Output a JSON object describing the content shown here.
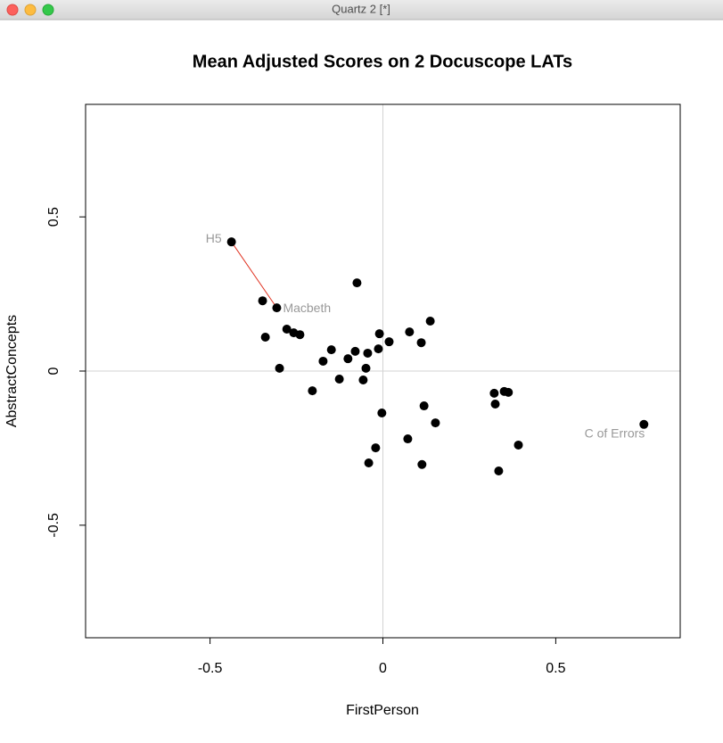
{
  "window_title": "Quartz 2 [*]",
  "chart_data": {
    "type": "scatter",
    "title": "Mean Adjusted Scores on 2 Docuscope LATs",
    "x_label": "FirstPerson",
    "y_label": "AbstractConcepts",
    "xlim": [
      -0.86,
      0.86
    ],
    "ylim": [
      -0.865,
      0.865
    ],
    "xticks": [
      -0.5,
      0.0,
      0.5
    ],
    "yticks": [
      -0.5,
      0.0,
      0.5
    ],
    "zero_lines": true,
    "color": "#000000",
    "label_color": "#999999",
    "connector_color": "#e0301e",
    "x": [
      -0.438,
      -0.348,
      -0.307,
      -0.075,
      -0.34,
      -0.278,
      -0.258,
      -0.24,
      -0.299,
      -0.149,
      -0.173,
      -0.101,
      -0.08,
      -0.044,
      -0.01,
      -0.013,
      0.018,
      0.077,
      0.111,
      0.137,
      -0.049,
      -0.057,
      -0.126,
      -0.204,
      -0.003,
      0.119,
      0.152,
      0.072,
      -0.021,
      -0.041,
      0.113,
      0.322,
      0.351,
      0.363,
      0.325,
      0.392,
      0.335,
      0.755
    ],
    "values": [
      0.419,
      0.228,
      0.205,
      0.286,
      0.11,
      0.136,
      0.124,
      0.118,
      0.009,
      0.069,
      0.032,
      0.04,
      0.064,
      0.058,
      0.121,
      0.072,
      0.095,
      0.127,
      0.092,
      0.162,
      0.009,
      -0.029,
      -0.026,
      -0.064,
      -0.136,
      -0.113,
      -0.168,
      -0.22,
      -0.249,
      -0.298,
      -0.303,
      -0.072,
      -0.066,
      -0.069,
      -0.107,
      -0.24,
      -0.324,
      -0.173
    ],
    "point_labels": [
      "H5",
      null,
      "Macbeth",
      null,
      null,
      null,
      null,
      null,
      null,
      null,
      null,
      null,
      null,
      null,
      null,
      null,
      null,
      null,
      null,
      null,
      null,
      null,
      null,
      null,
      null,
      null,
      null,
      null,
      null,
      null,
      null,
      null,
      null,
      null,
      null,
      null,
      null,
      "C of Errors"
    ]
  }
}
